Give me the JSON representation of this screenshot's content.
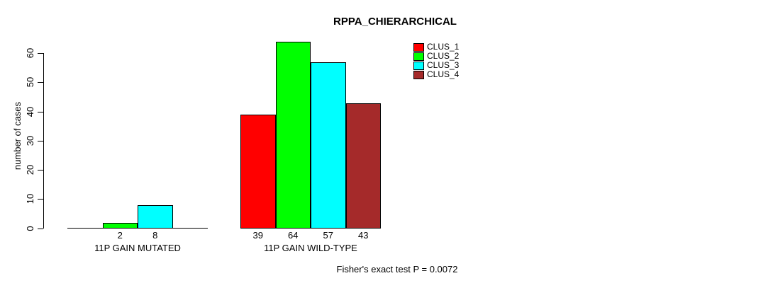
{
  "chart_data": {
    "type": "bar",
    "title": "RPPA_CHIERARCHICAL",
    "ylabel": "number of cases",
    "ylim": [
      0,
      60
    ],
    "yticks": [
      0,
      10,
      20,
      30,
      40,
      50,
      60
    ],
    "grid": false,
    "legend_position": "top-right",
    "categories": [
      "11P GAIN MUTATED",
      "11P GAIN WILD-TYPE"
    ],
    "series": [
      {
        "name": "CLUS_1",
        "color": "#ff0000",
        "values": [
          0,
          39
        ]
      },
      {
        "name": "CLUS_2",
        "color": "#00ff00",
        "values": [
          2,
          64
        ]
      },
      {
        "name": "CLUS_3",
        "color": "#00ffff",
        "values": [
          8,
          57
        ]
      },
      {
        "name": "CLUS_4",
        "color": "#a52a2a",
        "values": [
          0,
          43
        ]
      }
    ],
    "bar_value_labels": [
      [
        "",
        "2",
        "8",
        ""
      ],
      [
        "39",
        "64",
        "57",
        "43"
      ]
    ],
    "footnote": "Fisher's exact test P = 0.0072"
  }
}
